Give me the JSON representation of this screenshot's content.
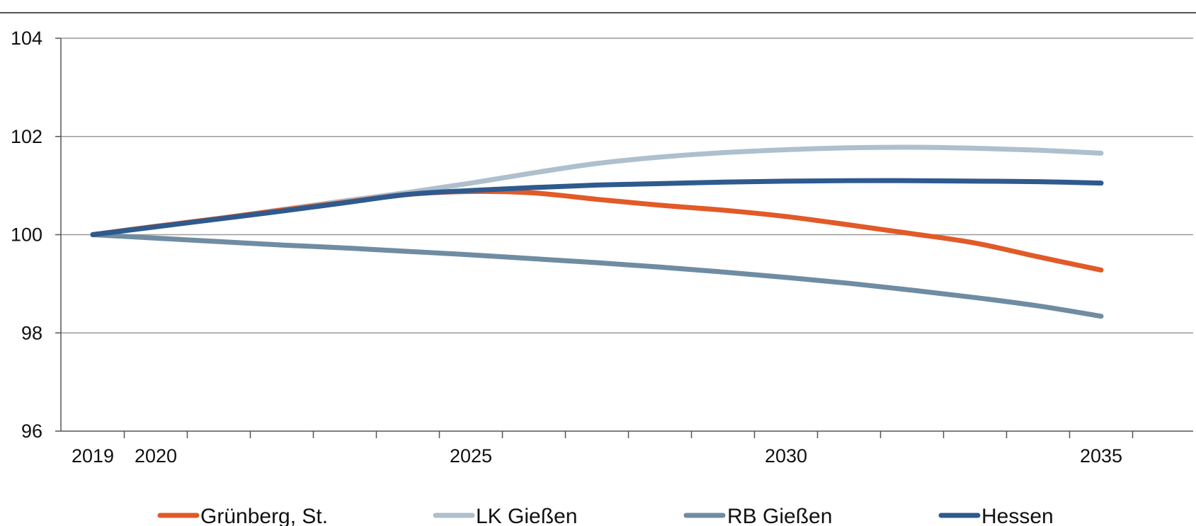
{
  "chart_data": {
    "type": "line",
    "x": [
      2019,
      2020,
      2021,
      2022,
      2023,
      2024,
      2025,
      2026,
      2027,
      2028,
      2029,
      2030,
      2031,
      2032,
      2033,
      2034,
      2035
    ],
    "series": [
      {
        "name": "Grünberg, St.",
        "color": "#e15a28",
        "values": [
          100.0,
          100.17,
          100.33,
          100.5,
          100.66,
          100.82,
          100.88,
          100.85,
          100.72,
          100.6,
          100.5,
          100.37,
          100.2,
          100.02,
          99.83,
          99.55,
          99.28
        ]
      },
      {
        "name": "LK Gießen",
        "color": "#aebfcd",
        "values": [
          100.0,
          100.17,
          100.33,
          100.51,
          100.69,
          100.86,
          101.05,
          101.26,
          101.45,
          101.58,
          101.67,
          101.73,
          101.77,
          101.78,
          101.76,
          101.72,
          101.66
        ]
      },
      {
        "name": "RB Gießen",
        "color": "#6f8ca2",
        "values": [
          100.0,
          99.93,
          99.86,
          99.79,
          99.73,
          99.66,
          99.59,
          99.51,
          99.43,
          99.34,
          99.24,
          99.13,
          99.01,
          98.87,
          98.72,
          98.55,
          98.34
        ]
      },
      {
        "name": "Hessen",
        "color": "#2e5a8e",
        "values": [
          100.0,
          100.16,
          100.32,
          100.48,
          100.65,
          100.82,
          100.9,
          100.96,
          101.01,
          101.04,
          101.07,
          101.09,
          101.1,
          101.1,
          101.09,
          101.08,
          101.05
        ]
      }
    ],
    "xticks": [
      2019,
      2020,
      2025,
      2030,
      2035
    ],
    "xtick_labels": [
      "2019",
      "2020",
      "2025",
      "2030",
      "2035"
    ],
    "yticks": [
      96,
      98,
      100,
      102,
      104
    ],
    "ytick_labels": [
      "96",
      "98",
      "100",
      "102",
      "104"
    ],
    "xlim": [
      2018.5,
      2037
    ],
    "ylim": [
      96,
      104
    ],
    "grid": "horizontal",
    "legend_position": "bottom",
    "title": "",
    "xlabel": "",
    "ylabel": ""
  }
}
